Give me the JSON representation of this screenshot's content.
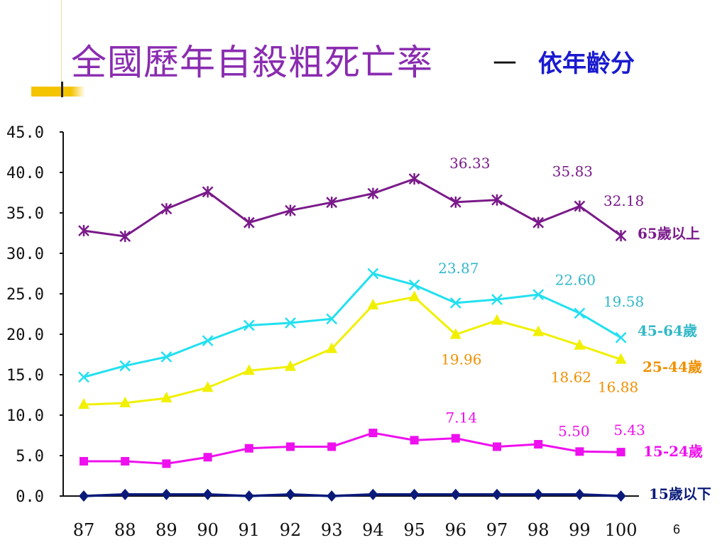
{
  "title": "全國歷年自殺粗死亡率",
  "separator": "－",
  "subtitle": "依年齡分",
  "page_number": "6",
  "colors": {
    "title": "#8a2cb0",
    "subtitle": "#1a1ad0",
    "accent_bar": "#f5c400"
  },
  "chart_data": {
    "type": "line",
    "categories": [
      "87",
      "88",
      "89",
      "90",
      "91",
      "92",
      "93",
      "94",
      "95",
      "96",
      "97",
      "98",
      "99",
      "100"
    ],
    "ylim": [
      0,
      45
    ],
    "yticks": [
      "0.0",
      "5.0",
      "10.0",
      "15.0",
      "20.0",
      "25.0",
      "30.0",
      "35.0",
      "40.0",
      "45.0"
    ],
    "grid": false,
    "series": [
      {
        "name": "65歲以上",
        "color": "#7a1a8a",
        "label_color": "#7a1a8a",
        "marker": "asterisk",
        "values": [
          32.8,
          32.1,
          35.5,
          37.6,
          33.8,
          35.3,
          36.3,
          37.4,
          39.2,
          36.33,
          36.6,
          33.8,
          35.83,
          32.18
        ],
        "annotations": [
          {
            "index": 9,
            "text": "36.33"
          },
          {
            "index": 12,
            "text": "35.83"
          },
          {
            "index": 13,
            "text": "32.18"
          }
        ]
      },
      {
        "name": "45-64歲",
        "color": "#22e0f0",
        "label_color": "#30b8c8",
        "marker": "x",
        "values": [
          14.7,
          16.1,
          17.2,
          19.2,
          21.1,
          21.4,
          21.9,
          27.5,
          26.1,
          23.87,
          24.3,
          24.9,
          22.6,
          19.58
        ],
        "annotations": [
          {
            "index": 9,
            "text": "23.87"
          },
          {
            "index": 12,
            "text": "22.60"
          },
          {
            "index": 13,
            "text": "19.58"
          }
        ]
      },
      {
        "name": "25-44歲",
        "color": "#f0f000",
        "label_color": "#f09000",
        "marker": "triangle",
        "values": [
          11.3,
          11.5,
          12.1,
          13.4,
          15.5,
          16.0,
          18.2,
          23.6,
          24.6,
          19.96,
          21.7,
          20.3,
          18.62,
          16.88
        ],
        "annotations": [
          {
            "index": 9,
            "text": "19.96"
          },
          {
            "index": 12,
            "text": "18.62"
          },
          {
            "index": 13,
            "text": "16.88"
          }
        ]
      },
      {
        "name": "15-24歲",
        "color": "#ee10ee",
        "label_color": "#ee10ee",
        "marker": "square",
        "values": [
          4.3,
          4.3,
          4.0,
          4.8,
          5.9,
          6.1,
          6.1,
          7.8,
          6.9,
          7.14,
          6.1,
          6.4,
          5.5,
          5.43
        ],
        "annotations": [
          {
            "index": 9,
            "text": "7.14"
          },
          {
            "index": 12,
            "text": "5.50"
          },
          {
            "index": 13,
            "text": "5.43"
          }
        ]
      },
      {
        "name": "15歲以下",
        "color": "#0a1a7a",
        "label_color": "#0a1a7a",
        "marker": "diamond",
        "values": [
          0.0,
          0.2,
          0.2,
          0.2,
          0.0,
          0.2,
          0.0,
          0.2,
          0.2,
          0.2,
          0.2,
          0.2,
          0.2,
          0.0
        ],
        "annotations": []
      }
    ]
  }
}
